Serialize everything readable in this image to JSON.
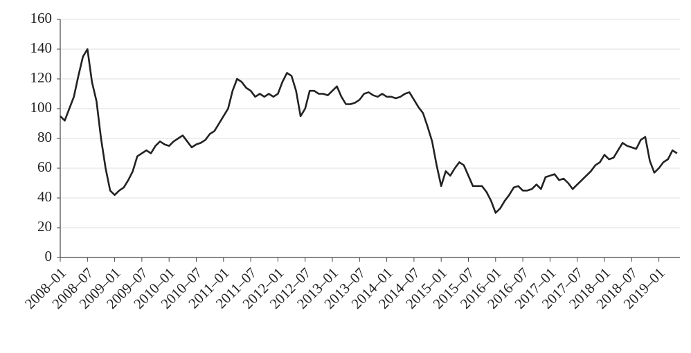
{
  "chart_data": {
    "type": "line",
    "categories": [
      "2008–01",
      null,
      null,
      null,
      null,
      null,
      "2008–07",
      null,
      null,
      null,
      null,
      null,
      "2009–01",
      null,
      null,
      null,
      null,
      null,
      "2009–07",
      null,
      null,
      null,
      null,
      null,
      "2010–01",
      null,
      null,
      null,
      null,
      null,
      "2010–07",
      null,
      null,
      null,
      null,
      null,
      "2011–01",
      null,
      null,
      null,
      null,
      null,
      "2011–07",
      null,
      null,
      null,
      null,
      null,
      "2012–01",
      null,
      null,
      null,
      null,
      null,
      "2012–07",
      null,
      null,
      null,
      null,
      null,
      "2013–01",
      null,
      null,
      null,
      null,
      null,
      "2013–07",
      null,
      null,
      null,
      null,
      null,
      "2014–01",
      null,
      null,
      null,
      null,
      null,
      "2014–07",
      null,
      null,
      null,
      null,
      null,
      "2015–01",
      null,
      null,
      null,
      null,
      null,
      "2015–07",
      null,
      null,
      null,
      null,
      null,
      "2016–01",
      null,
      null,
      null,
      null,
      null,
      "2016–07",
      null,
      null,
      null,
      null,
      null,
      "2017–01",
      null,
      null,
      null,
      null,
      null,
      "2017–07",
      null,
      null,
      null,
      null,
      null,
      "2018–01",
      null,
      null,
      null,
      null,
      null,
      "2018–07",
      null,
      null,
      null,
      null,
      null,
      "2019–01",
      null,
      null,
      null,
      null
    ],
    "values": [
      95,
      92,
      100,
      108,
      122,
      135,
      140,
      118,
      105,
      80,
      60,
      45,
      42,
      45,
      47,
      52,
      58,
      68,
      70,
      72,
      70,
      75,
      78,
      76,
      75,
      78,
      80,
      82,
      78,
      74,
      76,
      77,
      79,
      83,
      85,
      90,
      95,
      100,
      112,
      120,
      118,
      114,
      112,
      108,
      110,
      108,
      110,
      108,
      110,
      118,
      124,
      122,
      112,
      95,
      100,
      112,
      112,
      110,
      110,
      109,
      112,
      115,
      108,
      103,
      103,
      104,
      106,
      110,
      111,
      109,
      108,
      110,
      108,
      108,
      107,
      108,
      110,
      111,
      106,
      101,
      97,
      88,
      78,
      62,
      48,
      58,
      55,
      60,
      64,
      62,
      55,
      48,
      48,
      48,
      44,
      38,
      30,
      33,
      38,
      42,
      47,
      48,
      45,
      45,
      46,
      49,
      46,
      54,
      55,
      56,
      52,
      53,
      50,
      46,
      49,
      52,
      55,
      58,
      62,
      64,
      69,
      66,
      67,
      72,
      77,
      75,
      74,
      73,
      79,
      81,
      65,
      57,
      60,
      64,
      66,
      72,
      70
    ],
    "color": "#222222",
    "ylim": [
      0,
      160
    ],
    "yticks": [
      0,
      20,
      40,
      60,
      80,
      100,
      120,
      140,
      160
    ],
    "grid": true
  }
}
